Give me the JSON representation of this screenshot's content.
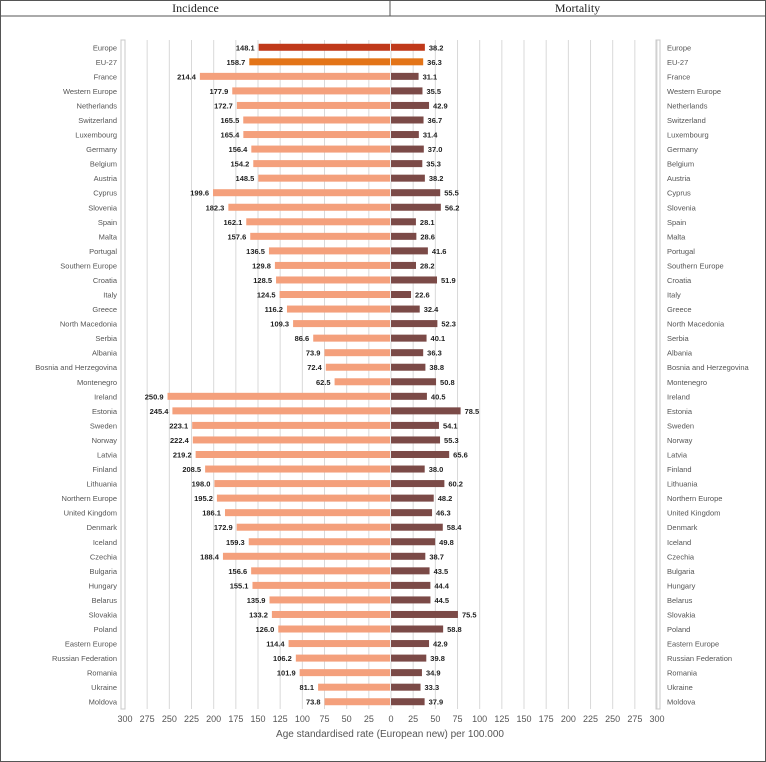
{
  "chart_data": {
    "type": "bar",
    "panels": [
      "Incidence",
      "Mortality"
    ],
    "xlabel": "Age standardised rate (European new) per 100.000",
    "xlim": [
      0,
      300
    ],
    "xticks": [
      300,
      275,
      250,
      225,
      200,
      175,
      150,
      125,
      100,
      75,
      50,
      25,
      0,
      25,
      50,
      75,
      100,
      125,
      150,
      175,
      200,
      225,
      250,
      275,
      300
    ],
    "categories": [
      "Europe",
      "EU-27",
      "France",
      "Western Europe",
      "Netherlands",
      "Switzerland",
      "Luxembourg",
      "Germany",
      "Belgium",
      "Austria",
      "Cyprus",
      "Slovenia",
      "Spain",
      "Malta",
      "Portugal",
      "Southern Europe",
      "Croatia",
      "Italy",
      "Greece",
      "North Macedonia",
      "Serbia",
      "Albania",
      "Bosnia and Herzegovina",
      "Montenegro",
      "Ireland",
      "Estonia",
      "Sweden",
      "Norway",
      "Latvia",
      "Finland",
      "Lithuania",
      "Northern Europe",
      "United Kingdom",
      "Denmark",
      "Iceland",
      "Czechia",
      "Bulgaria",
      "Hungary",
      "Belarus",
      "Slovakia",
      "Poland",
      "Eastern Europe",
      "Russian Federation",
      "Romania",
      "Ukraine",
      "Moldova"
    ],
    "series": [
      {
        "name": "Incidence",
        "values": [
          148.1,
          158.7,
          214.4,
          177.9,
          172.7,
          165.5,
          165.4,
          156.4,
          154.2,
          148.5,
          199.6,
          182.3,
          162.1,
          157.6,
          136.5,
          129.8,
          128.5,
          124.5,
          116.2,
          109.3,
          86.6,
          73.9,
          72.4,
          62.5,
          250.9,
          245.4,
          223.1,
          222.4,
          219.2,
          208.5,
          198.0,
          195.2,
          186.1,
          172.9,
          159.3,
          188.4,
          156.6,
          155.1,
          135.9,
          133.2,
          126.0,
          114.4,
          106.2,
          101.9,
          81.1,
          73.8
        ]
      },
      {
        "name": "Mortality",
        "values": [
          38.2,
          36.3,
          31.1,
          35.5,
          42.9,
          36.7,
          31.4,
          37.0,
          35.3,
          38.2,
          55.5,
          56.2,
          28.1,
          28.6,
          41.6,
          28.2,
          51.9,
          22.6,
          32.4,
          52.3,
          40.1,
          36.3,
          38.8,
          50.8,
          40.5,
          78.5,
          54.1,
          55.3,
          65.6,
          38.0,
          60.2,
          48.2,
          46.3,
          58.4,
          49.8,
          38.7,
          43.5,
          44.4,
          44.5,
          75.5,
          58.8,
          42.9,
          39.8,
          34.9,
          33.3,
          37.9
        ]
      }
    ],
    "colors": {
      "europe_incidence": "#c0391a",
      "eu_incidence": "#e37418",
      "incidence": "#f4a07c",
      "europe_mortality": "#c0391a",
      "eu_mortality": "#e37418",
      "mortality": "#7b4a47",
      "grid": "#d9d9d9",
      "axis_text": "#555555"
    }
  }
}
